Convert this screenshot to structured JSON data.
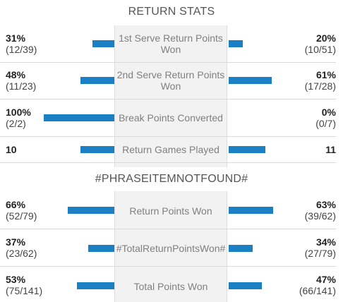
{
  "sections": [
    {
      "title": "RETURN STATS",
      "rows": [
        {
          "label": "1st Serve Return Points Won",
          "left_pct": "31%",
          "left_frac": "(12/39)",
          "right_pct": "20%",
          "right_frac": "(10/51)",
          "left_fill": 0.31,
          "right_fill": 0.2
        },
        {
          "label": "2nd Serve Return Points Won",
          "left_pct": "48%",
          "left_frac": "(11/23)",
          "right_pct": "61%",
          "right_frac": "(17/28)",
          "left_fill": 0.48,
          "right_fill": 0.61
        },
        {
          "label": "Break Points Converted",
          "left_pct": "100%",
          "left_frac": "(2/2)",
          "right_pct": "0%",
          "right_frac": "(0/7)",
          "left_fill": 1.0,
          "right_fill": 0.0
        },
        {
          "label": "Return Games Played",
          "left_pct": "10",
          "right_pct": "11",
          "left_fill": 0.476,
          "right_fill": 0.524
        }
      ]
    },
    {
      "title": "#PHRASEITEMNOTFOUND#",
      "rows": [
        {
          "label": "Return Points Won",
          "left_pct": "66%",
          "left_frac": "(52/79)",
          "right_pct": "63%",
          "right_frac": "(39/62)",
          "left_fill": 0.66,
          "right_fill": 0.63
        },
        {
          "label": "#TotalReturnPointsWon#",
          "left_pct": "37%",
          "left_frac": "(23/62)",
          "right_pct": "34%",
          "right_frac": "(27/79)",
          "left_fill": 0.37,
          "right_fill": 0.34
        },
        {
          "label": "Total Points Won",
          "left_pct": "53%",
          "left_frac": "(75/141)",
          "right_pct": "47%",
          "right_frac": "(66/141)",
          "left_fill": 0.53,
          "right_fill": 0.47
        }
      ]
    }
  ],
  "colors": {
    "bar": "#1b7fc4",
    "label": "#808080",
    "divider": "#d9d9d9"
  }
}
